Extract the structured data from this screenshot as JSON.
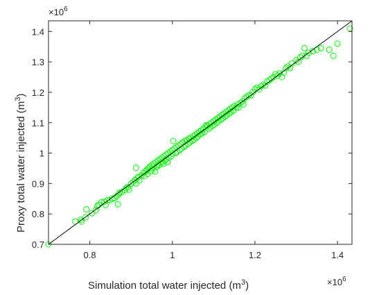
{
  "chart_data": {
    "type": "scatter",
    "xlabel": "Simulation total water injected (m",
    "xlabel_sup": "3",
    "xlabel_close": ")",
    "ylabel": "Proxy total water injected (m",
    "ylabel_sup": "3",
    "ylabel_close": ")",
    "x_exponent_base": "×10",
    "x_exponent_power": "6",
    "y_exponent_base": "×10",
    "y_exponent_power": "6",
    "xlim": [
      0.7,
      1.435
    ],
    "ylim": [
      0.7,
      1.435
    ],
    "xticks": [
      0.8,
      1.0,
      1.2,
      1.4
    ],
    "xtick_labels": [
      "0.8",
      "1",
      "1.2",
      "1.4"
    ],
    "yticks": [
      0.7,
      0.8,
      0.9,
      1.0,
      1.1,
      1.2,
      1.3,
      1.4
    ],
    "ytick_labels": [
      "0.7",
      "0.8",
      "0.9",
      "1",
      "1.1",
      "1.2",
      "1.3",
      "1.4"
    ],
    "grid": false,
    "marker": "circle",
    "marker_color": "#00ff00",
    "reference_line": {
      "label": "y = x",
      "color": "#000000",
      "from": [
        0.7,
        0.7
      ],
      "to": [
        1.435,
        1.435
      ]
    },
    "series": [
      {
        "points": [
          [
            0.7,
            0.7
          ],
          [
            0.765,
            0.775
          ],
          [
            0.778,
            0.781
          ],
          [
            0.78,
            0.775
          ],
          [
            0.79,
            0.789
          ],
          [
            0.792,
            0.815
          ],
          [
            0.805,
            0.802
          ],
          [
            0.815,
            0.812
          ],
          [
            0.818,
            0.825
          ],
          [
            0.822,
            0.83
          ],
          [
            0.828,
            0.838
          ],
          [
            0.835,
            0.84
          ],
          [
            0.838,
            0.829
          ],
          [
            0.842,
            0.845
          ],
          [
            0.848,
            0.845
          ],
          [
            0.855,
            0.85
          ],
          [
            0.86,
            0.852
          ],
          [
            0.865,
            0.858
          ],
          [
            0.868,
            0.832
          ],
          [
            0.87,
            0.865
          ],
          [
            0.872,
            0.87
          ],
          [
            0.878,
            0.872
          ],
          [
            0.885,
            0.878
          ],
          [
            0.888,
            0.885
          ],
          [
            0.892,
            0.888
          ],
          [
            0.895,
            0.88
          ],
          [
            0.9,
            0.899
          ],
          [
            0.905,
            0.905
          ],
          [
            0.91,
            0.912
          ],
          [
            0.912,
            0.9
          ],
          [
            0.912,
            0.952
          ],
          [
            0.915,
            0.918
          ],
          [
            0.918,
            0.922
          ],
          [
            0.92,
            0.91
          ],
          [
            0.925,
            0.926
          ],
          [
            0.93,
            0.935
          ],
          [
            0.932,
            0.925
          ],
          [
            0.935,
            0.94
          ],
          [
            0.938,
            0.945
          ],
          [
            0.94,
            0.932
          ],
          [
            0.942,
            0.95
          ],
          [
            0.945,
            0.955
          ],
          [
            0.948,
            0.94
          ],
          [
            0.95,
            0.96
          ],
          [
            0.952,
            0.948
          ],
          [
            0.955,
            0.965
          ],
          [
            0.955,
            0.955
          ],
          [
            0.958,
            0.94
          ],
          [
            0.96,
            0.97
          ],
          [
            0.962,
            0.955
          ],
          [
            0.965,
            0.975
          ],
          [
            0.965,
            0.962
          ],
          [
            0.968,
            0.96
          ],
          [
            0.97,
            0.98
          ],
          [
            0.972,
            0.968
          ],
          [
            0.975,
            0.985
          ],
          [
            0.975,
            0.972
          ],
          [
            0.978,
            0.965
          ],
          [
            0.98,
            0.99
          ],
          [
            0.982,
            0.975
          ],
          [
            0.985,
            0.995
          ],
          [
            0.985,
            0.98
          ],
          [
            0.988,
            0.97
          ],
          [
            0.99,
            1.0
          ],
          [
            0.992,
            0.985
          ],
          [
            0.995,
            1.005
          ],
          [
            0.998,
            0.99
          ],
          [
            1.0,
            1.01
          ],
          [
            1.0,
            0.998
          ],
          [
            1.002,
            1.04
          ],
          [
            1.005,
            1.015
          ],
          [
            1.008,
            1.0
          ],
          [
            1.01,
            1.02
          ],
          [
            1.012,
            1.005
          ],
          [
            1.015,
            1.025
          ],
          [
            1.018,
            1.01
          ],
          [
            1.02,
            1.03
          ],
          [
            1.022,
            1.015
          ],
          [
            1.025,
            1.035
          ],
          [
            1.028,
            1.02
          ],
          [
            1.03,
            1.04
          ],
          [
            1.032,
            1.025
          ],
          [
            1.035,
            1.042
          ],
          [
            1.038,
            1.03
          ],
          [
            1.04,
            1.048
          ],
          [
            1.042,
            1.035
          ],
          [
            1.045,
            1.05
          ],
          [
            1.048,
            1.04
          ],
          [
            1.05,
            1.055
          ],
          [
            1.052,
            1.045
          ],
          [
            1.055,
            1.06
          ],
          [
            1.058,
            1.05
          ],
          [
            1.06,
            1.065
          ],
          [
            1.062,
            1.055
          ],
          [
            1.065,
            1.07
          ],
          [
            1.068,
            1.062
          ],
          [
            1.07,
            1.075
          ],
          [
            1.072,
            1.066
          ],
          [
            1.075,
            1.08
          ],
          [
            1.078,
            1.07
          ],
          [
            1.08,
            1.085
          ],
          [
            1.082,
            1.092
          ],
          [
            1.085,
            1.09
          ],
          [
            1.088,
            1.08
          ],
          [
            1.09,
            1.095
          ],
          [
            1.092,
            1.085
          ],
          [
            1.095,
            1.1
          ],
          [
            1.098,
            1.09
          ],
          [
            1.1,
            1.105
          ],
          [
            1.102,
            1.095
          ],
          [
            1.105,
            1.11
          ],
          [
            1.108,
            1.1
          ],
          [
            1.11,
            1.115
          ],
          [
            1.112,
            1.105
          ],
          [
            1.115,
            1.12
          ],
          [
            1.118,
            1.11
          ],
          [
            1.12,
            1.125
          ],
          [
            1.122,
            1.115
          ],
          [
            1.125,
            1.13
          ],
          [
            1.128,
            1.12
          ],
          [
            1.13,
            1.135
          ],
          [
            1.132,
            1.125
          ],
          [
            1.135,
            1.14
          ],
          [
            1.138,
            1.13
          ],
          [
            1.14,
            1.145
          ],
          [
            1.142,
            1.135
          ],
          [
            1.145,
            1.15
          ],
          [
            1.148,
            1.14
          ],
          [
            1.15,
            1.155
          ],
          [
            1.155,
            1.15
          ],
          [
            1.158,
            1.16
          ],
          [
            1.16,
            1.15
          ],
          [
            1.165,
            1.165
          ],
          [
            1.17,
            1.17
          ],
          [
            1.172,
            1.16
          ],
          [
            1.175,
            1.18
          ],
          [
            1.18,
            1.185
          ],
          [
            1.185,
            1.19
          ],
          [
            1.19,
            1.19
          ],
          [
            1.195,
            1.2
          ],
          [
            1.2,
            1.21
          ],
          [
            1.205,
            1.215
          ],
          [
            1.21,
            1.21
          ],
          [
            1.215,
            1.22
          ],
          [
            1.22,
            1.225
          ],
          [
            1.225,
            1.222
          ],
          [
            1.23,
            1.235
          ],
          [
            1.235,
            1.24
          ],
          [
            1.24,
            1.245
          ],
          [
            1.245,
            1.25
          ],
          [
            1.25,
            1.26
          ],
          [
            1.255,
            1.255
          ],
          [
            1.26,
            1.262
          ],
          [
            1.265,
            1.25
          ],
          [
            1.27,
            1.265
          ],
          [
            1.275,
            1.28
          ],
          [
            1.28,
            1.285
          ],
          [
            1.285,
            1.28
          ],
          [
            1.29,
            1.295
          ],
          [
            1.3,
            1.305
          ],
          [
            1.305,
            1.3
          ],
          [
            1.31,
            1.315
          ],
          [
            1.315,
            1.32
          ],
          [
            1.32,
            1.345
          ],
          [
            1.325,
            1.32
          ],
          [
            1.33,
            1.33
          ],
          [
            1.34,
            1.335
          ],
          [
            1.35,
            1.34
          ],
          [
            1.36,
            1.345
          ],
          [
            1.38,
            1.34
          ],
          [
            1.39,
            1.32
          ],
          [
            1.4,
            1.36
          ],
          [
            1.43,
            1.41
          ]
        ]
      }
    ]
  }
}
